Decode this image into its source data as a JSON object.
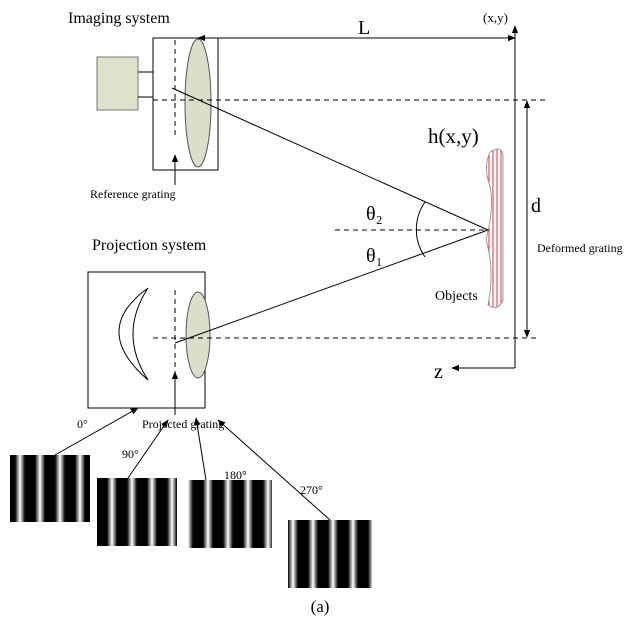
{
  "labels": {
    "imaging_system": "Imaging system",
    "length": "L",
    "origin": "(x,y)",
    "height_function": "h(x,y)",
    "distance": "d",
    "reference_grating": "Reference grating",
    "theta_2": "θ₂",
    "theta_1": "θ₁",
    "deformed_grating": "Deformed grating",
    "projection_system": "Projection system",
    "objects": "Objects",
    "z_axis": "z",
    "projected_grating": "Projected grating",
    "caption": "(a)"
  },
  "gratings": [
    {
      "phase": "0°"
    },
    {
      "phase": "90°"
    },
    {
      "phase": "180°"
    },
    {
      "phase": "270°"
    }
  ]
}
